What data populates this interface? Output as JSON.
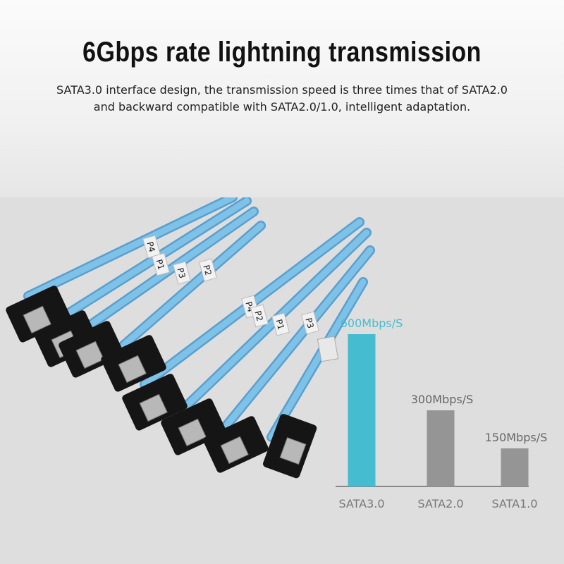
{
  "title": "6Gbps rate lightning transmission",
  "subtitle_lines": [
    "SATA3.0 interface design, the transmission speed is three times that of SATA2.0",
    "and backward compatible with SATA2.0/1.0, intelligent adaptation."
  ],
  "cable_labels": [
    "P4",
    "P1",
    "P3",
    "P2",
    "P4",
    "P2",
    "P1",
    "P3"
  ],
  "colors": {
    "highlight": "#46bcd0",
    "bar": "#959595",
    "cable": "#7ec2e8",
    "connector": "#151515"
  },
  "chart_data": {
    "type": "bar",
    "categories": [
      "SATA3.0",
      "SATA2.0",
      "SATA1.0"
    ],
    "values": [
      600,
      300,
      150
    ],
    "data_labels": [
      "600Mbps/S",
      "300Mbps/S",
      "150Mbps/S"
    ],
    "title": "",
    "xlabel": "",
    "ylabel": "",
    "ylim": [
      0,
      600
    ],
    "grid": false,
    "legend": "none"
  }
}
